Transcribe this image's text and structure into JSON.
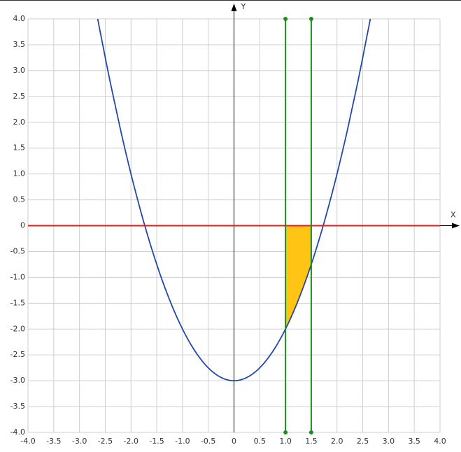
{
  "chart_data": {
    "type": "line",
    "x_label": "X",
    "y_label": "Y",
    "xlim": [
      -4,
      4
    ],
    "ylim": [
      -4,
      4
    ],
    "grid": true,
    "xticks": [
      {
        "value": -4,
        "label": "-4.0"
      },
      -3.5,
      {
        "value": -3,
        "label": "-3.0"
      },
      -2.5,
      {
        "value": -2,
        "label": "-2.0"
      },
      -1.5,
      {
        "value": -1,
        "label": "-1.0"
      },
      -0.5,
      0,
      0.5,
      {
        "value": 1,
        "label": "1.0"
      },
      1.5,
      {
        "value": 2,
        "label": "2.0"
      },
      2.5,
      {
        "value": 3,
        "label": "3.0"
      },
      3.5,
      {
        "value": 4,
        "label": "4.0"
      }
    ],
    "yticks": [
      {
        "value": -4,
        "label": "-4.0"
      },
      -3.5,
      {
        "value": -3,
        "label": "-3.0"
      },
      -2.5,
      {
        "value": -2,
        "label": "-2.0"
      },
      -1.5,
      {
        "value": -1,
        "label": "-1.0"
      },
      -0.5,
      0,
      0.5,
      {
        "value": 1,
        "label": "1.0"
      },
      1.5,
      {
        "value": 2,
        "label": "2.0"
      },
      2.5,
      {
        "value": 3,
        "label": "3.0"
      },
      3.5,
      {
        "value": 4,
        "label": "4.0"
      }
    ],
    "series": [
      {
        "type": "area",
        "color": "#ffc414",
        "x": [
          1,
          1.25,
          1.5
        ],
        "values": [
          -2,
          -1.4375,
          -0.75
        ]
      },
      {
        "type": "line",
        "color": "#e3201c",
        "x": [
          -4,
          4
        ],
        "values": [
          0,
          0
        ]
      },
      {
        "type": "line",
        "color": "#1f8c1f",
        "markers": true,
        "x": [
          1,
          1
        ],
        "values": [
          -4,
          4
        ]
      },
      {
        "type": "line",
        "color": "#1f8c1f",
        "markers": true,
        "x": [
          1.5,
          1.5
        ],
        "values": [
          -4,
          4
        ]
      },
      {
        "type": "curve",
        "color": "#2448a8",
        "x": [
          -2.646,
          -2.6,
          -2.4,
          -2.2,
          -2.0,
          -1.8,
          -1.6,
          -1.4,
          -1.2,
          -1.0,
          -0.8,
          -0.6,
          -0.4,
          -0.2,
          0,
          0.2,
          0.4,
          0.6,
          0.8,
          1.0,
          1.2,
          1.4,
          1.6,
          1.8,
          2.0,
          2.2,
          2.4,
          2.6,
          2.646
        ],
        "values": [
          4,
          3.76,
          2.76,
          1.84,
          1,
          0.24,
          -0.44,
          -1.04,
          -1.56,
          -2,
          -2.36,
          -2.64,
          -2.84,
          -2.96,
          -3,
          -2.96,
          -2.84,
          -2.64,
          -2.36,
          -2,
          -1.56,
          -1.04,
          -0.44,
          0.24,
          1,
          1.84,
          2.76,
          3.76,
          4
        ]
      }
    ]
  }
}
